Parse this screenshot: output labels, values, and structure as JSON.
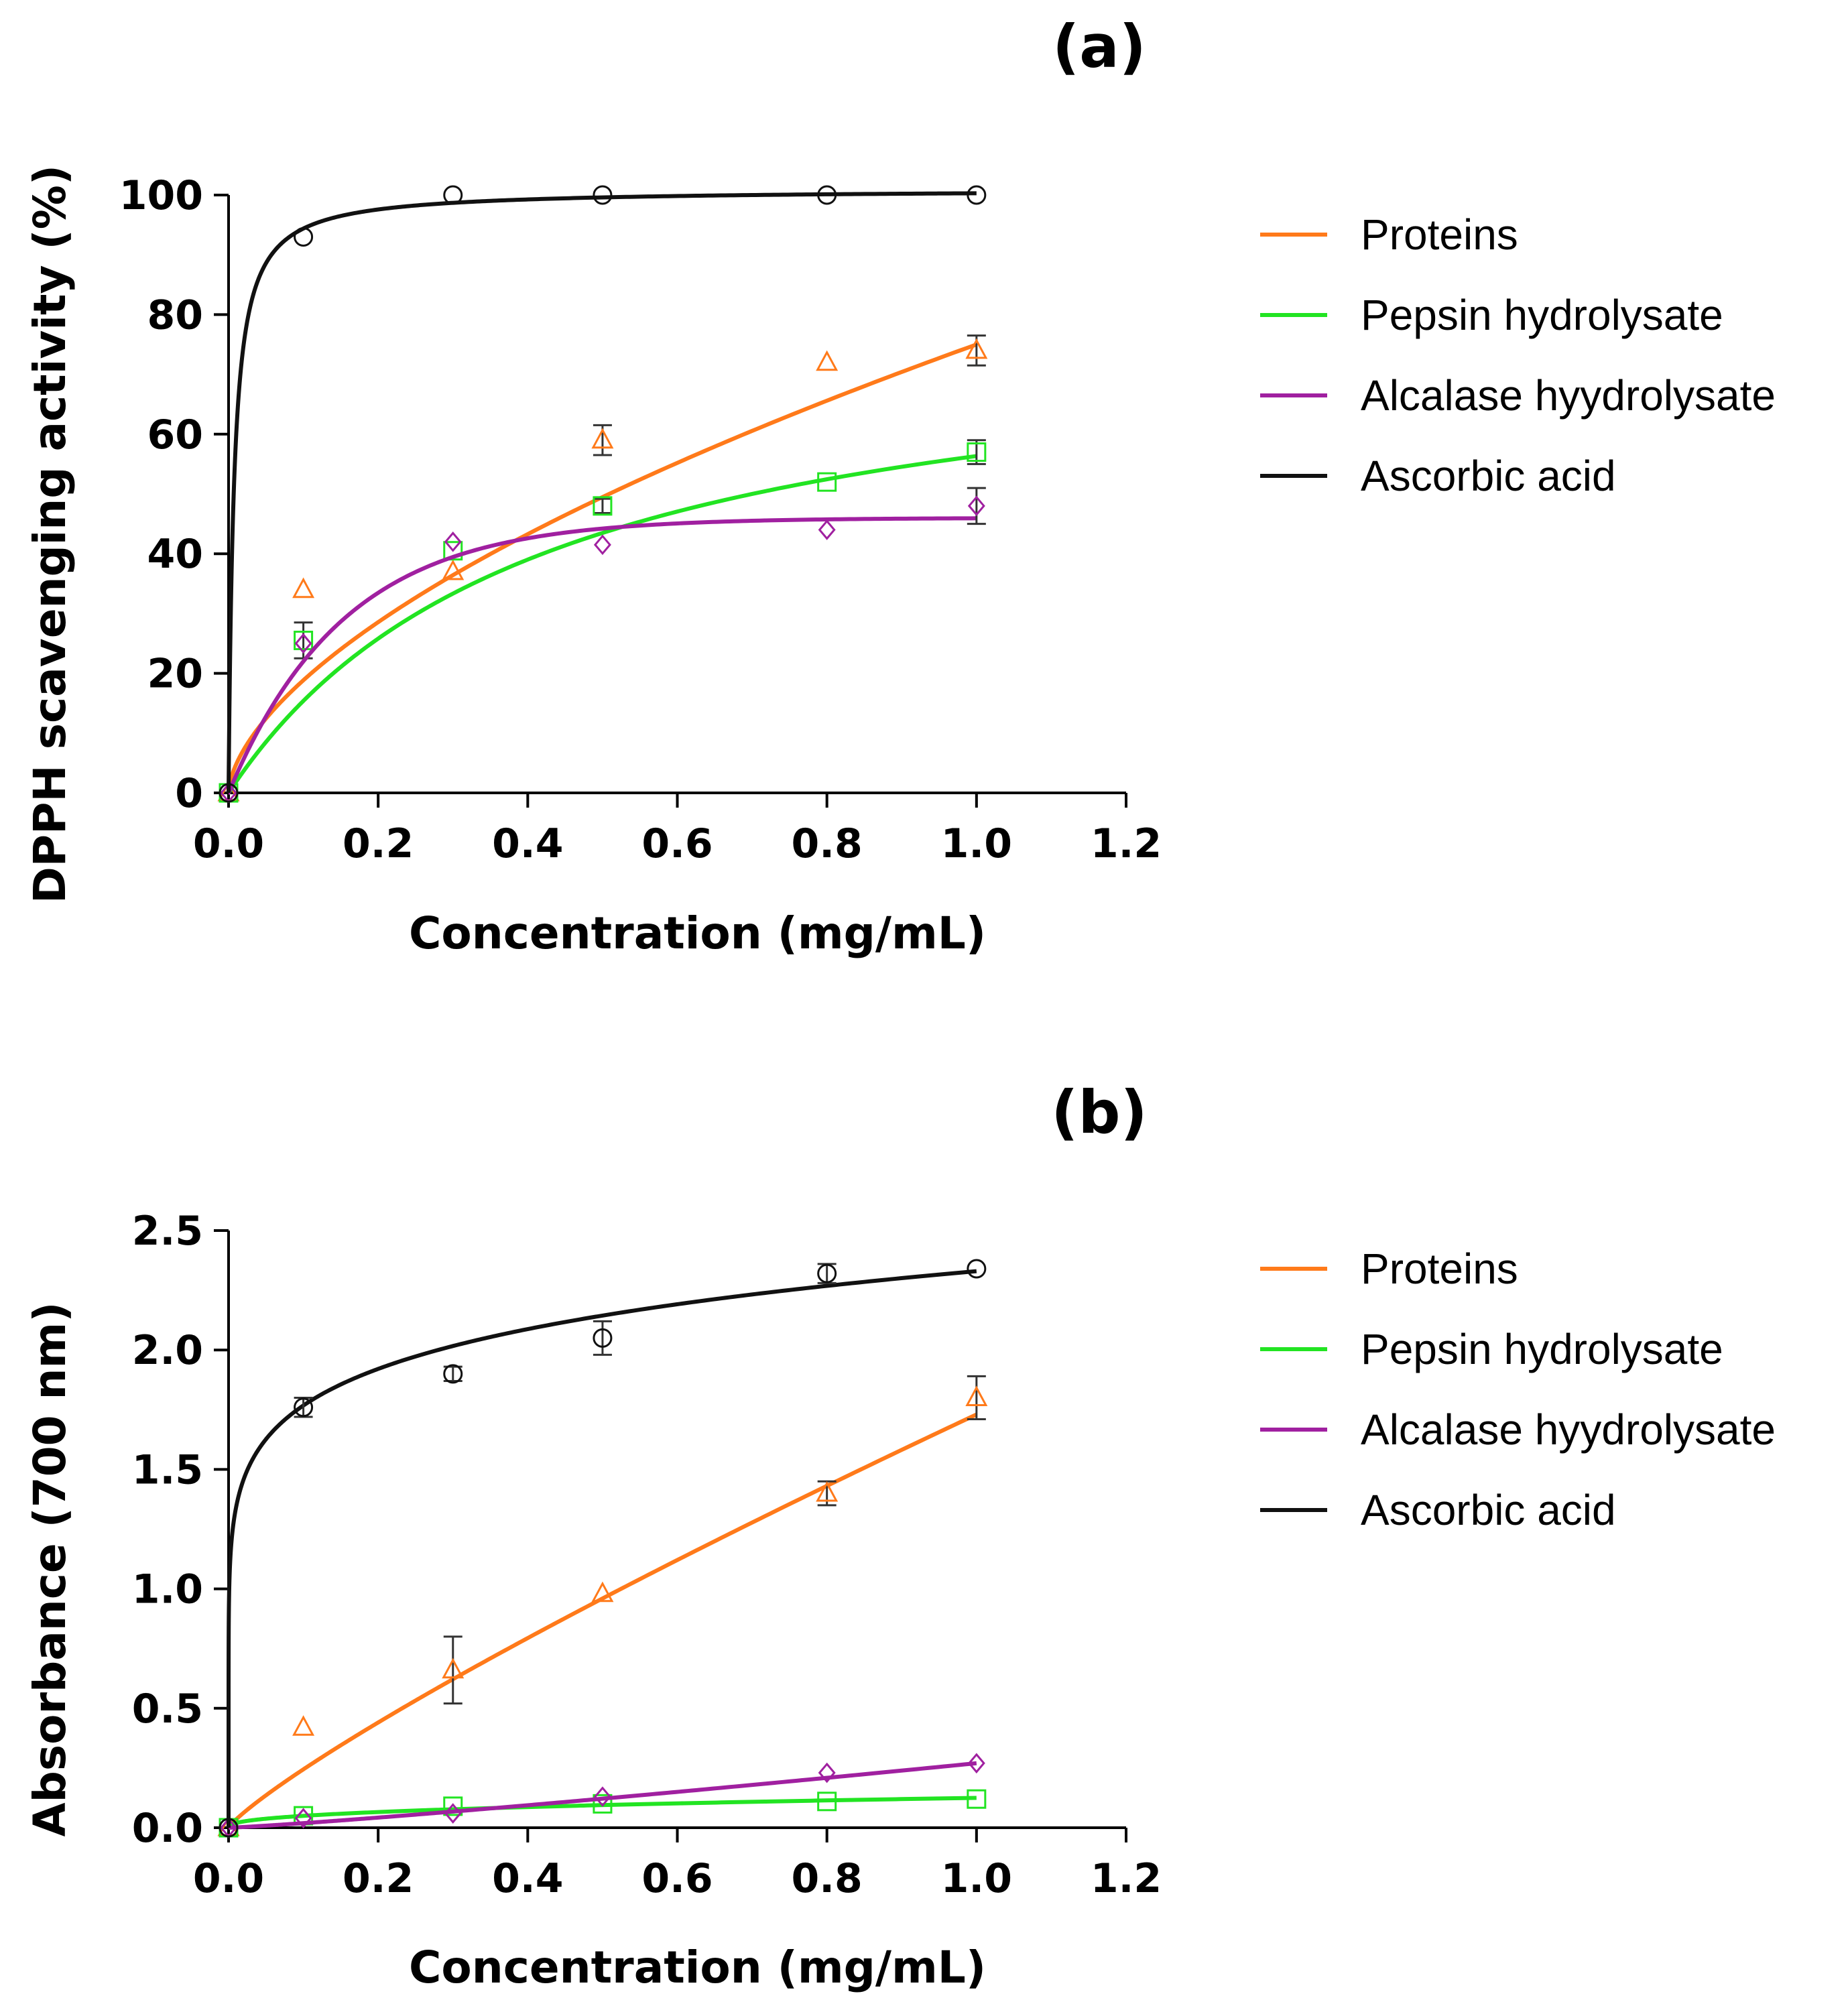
{
  "chart_data": [
    {
      "type": "scatter",
      "panel_label": "(a)",
      "xlabel": "Concentration (mg/mL)",
      "ylabel": "DPPH scavenging activity (%)",
      "xlim": [
        0,
        1.2
      ],
      "ylim": [
        0,
        100
      ],
      "xticks": [
        0,
        0.2,
        0.4,
        0.6,
        0.8,
        1.0,
        1.2
      ],
      "xtick_labels": [
        "0.0",
        "0.2",
        "0.4",
        "0.6",
        "0.8",
        "1.0",
        "1.2"
      ],
      "yticks": [
        0,
        20,
        40,
        60,
        80,
        100
      ],
      "ytick_labels": [
        "0",
        "20",
        "40",
        "60",
        "80",
        "100"
      ],
      "grid": false,
      "legend_position": "right",
      "series": [
        {
          "name": "Proteins",
          "color": "#ff7a1a",
          "marker": "triangle",
          "x": [
            0,
            0.1,
            0.3,
            0.5,
            0.8,
            1.0
          ],
          "y": [
            0,
            34,
            37,
            59,
            72,
            74
          ],
          "err": [
            0,
            0,
            0,
            2.5,
            0,
            2.5
          ],
          "fit": {
            "model": "power",
            "a": 75,
            "b": 0.6
          }
        },
        {
          "name": "Pepsin hydrolysate",
          "color": "#22e422",
          "marker": "square",
          "x": [
            0,
            0.1,
            0.3,
            0.5,
            0.8,
            1.0
          ],
          "y": [
            0,
            25.5,
            40.5,
            48,
            52,
            57
          ],
          "err": [
            0,
            3,
            0,
            1.2,
            0,
            2
          ],
          "fit": {
            "model": "hyperbola",
            "vmax": 80,
            "k": 0.42
          }
        },
        {
          "name": "Alcalase hyydrolysate",
          "color": "#a020a0",
          "marker": "diamond",
          "x": [
            0,
            0.1,
            0.3,
            0.5,
            0.8,
            1.0
          ],
          "y": [
            0,
            25,
            42,
            41.5,
            44,
            48
          ],
          "err": [
            0,
            0,
            0,
            0,
            0,
            3
          ],
          "fit": {
            "model": "exp_rise",
            "a": 46,
            "k": 6.5
          }
        },
        {
          "name": "Ascorbic acid",
          "color": "#111111",
          "marker": "circle",
          "x": [
            0,
            0.1,
            0.3,
            0.5,
            0.8,
            1.0
          ],
          "y": [
            0,
            93,
            100,
            100,
            100,
            100
          ],
          "err": [
            0,
            0,
            0,
            0,
            0,
            0
          ],
          "fit": {
            "model": "hyperbola",
            "vmax": 101,
            "k": 0.007
          }
        }
      ]
    },
    {
      "type": "scatter",
      "panel_label": "(b)",
      "xlabel": "Concentration (mg/mL)",
      "ylabel": "Absorbance (700 nm)",
      "xlim": [
        0,
        1.2
      ],
      "ylim": [
        0,
        2.5
      ],
      "xticks": [
        0,
        0.2,
        0.4,
        0.6,
        0.8,
        1.0,
        1.2
      ],
      "xtick_labels": [
        "0.0",
        "0.2",
        "0.4",
        "0.6",
        "0.8",
        "1.0",
        "1.2"
      ],
      "yticks": [
        0,
        0.5,
        1.0,
        1.5,
        2.0,
        2.5
      ],
      "ytick_labels": [
        "0.0",
        "0.5",
        "1.0",
        "1.5",
        "2.0",
        "2.5"
      ],
      "grid": false,
      "legend_position": "right",
      "series": [
        {
          "name": "Proteins",
          "color": "#ff7a1a",
          "marker": "triangle",
          "x": [
            0,
            0.1,
            0.3,
            0.5,
            0.8,
            1.0
          ],
          "y": [
            0,
            0.42,
            0.66,
            0.98,
            1.4,
            1.8
          ],
          "err": [
            0,
            0,
            0.14,
            0,
            0.05,
            0.09
          ],
          "fit": {
            "model": "power",
            "a": 1.73,
            "b": 0.85
          }
        },
        {
          "name": "Pepsin hydrolysate",
          "color": "#22e422",
          "marker": "square",
          "x": [
            0,
            0.1,
            0.3,
            0.5,
            0.8,
            1.0
          ],
          "y": [
            0,
            0.05,
            0.09,
            0.1,
            0.11,
            0.12
          ],
          "err": [
            0,
            0,
            0,
            0,
            0,
            0
          ],
          "fit": {
            "model": "power",
            "a": 0.125,
            "b": 0.4
          }
        },
        {
          "name": "Alcalase hyydrolysate",
          "color": "#a020a0",
          "marker": "diamond",
          "x": [
            0,
            0.1,
            0.3,
            0.5,
            0.8,
            1.0
          ],
          "y": [
            0,
            0.04,
            0.06,
            0.13,
            0.23,
            0.27
          ],
          "err": [
            0,
            0,
            0,
            0,
            0,
            0
          ],
          "fit": {
            "model": "power",
            "a": 0.27,
            "b": 1.15
          }
        },
        {
          "name": "Ascorbic acid",
          "color": "#111111",
          "marker": "circle",
          "x": [
            0,
            0.1,
            0.3,
            0.5,
            0.8,
            1.0
          ],
          "y": [
            0,
            1.76,
            1.9,
            2.05,
            2.32,
            2.34
          ],
          "err": [
            0,
            0.04,
            0.03,
            0.07,
            0.04,
            0
          ],
          "fit": {
            "model": "power",
            "a": 2.33,
            "b": 0.12
          }
        }
      ]
    }
  ]
}
